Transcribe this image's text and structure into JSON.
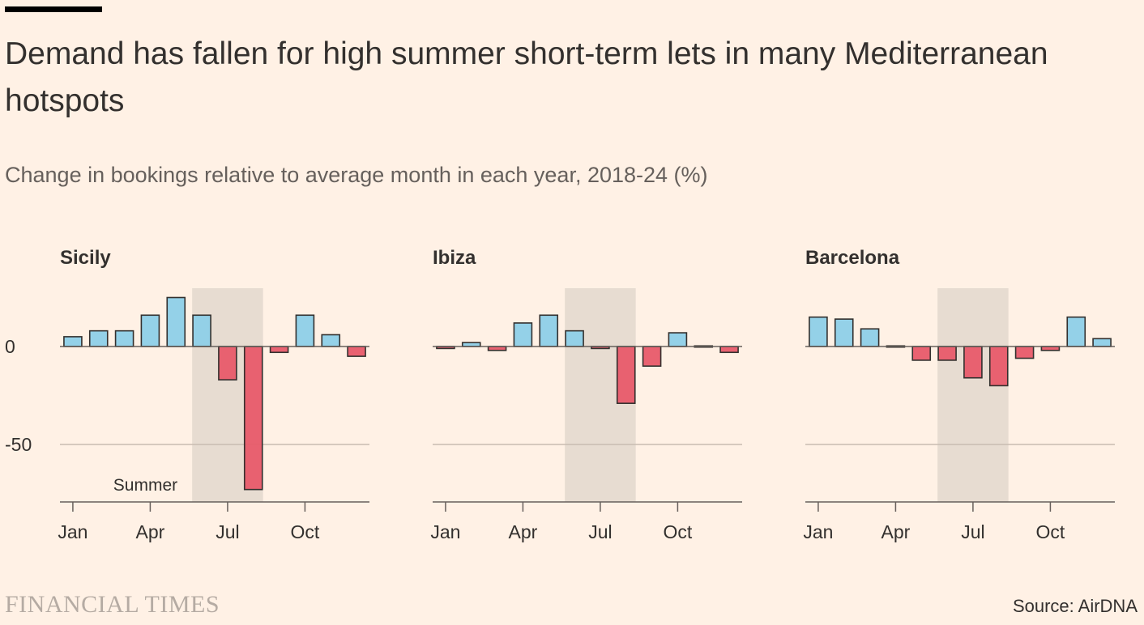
{
  "header": {
    "title": "Demand has fallen for high summer short-term lets in many Mediterranean hotspots",
    "subtitle": "Change in bookings relative to average month in each year, 2018-24 (%)"
  },
  "footer": {
    "logo": "FINANCIAL TIMES",
    "source": "Source: AirDNA"
  },
  "colors": {
    "positive": "#8ecfe8",
    "negative": "#e85a6a",
    "shade": "#e7dcd1",
    "axis": "#66605c",
    "grid": "#c9bcb1",
    "bar_stroke": "#33302e"
  },
  "chart_data": [
    {
      "type": "bar",
      "title": "Sicily",
      "categories": [
        "Jan",
        "Feb",
        "Mar",
        "Apr",
        "May",
        "Jun",
        "Jul",
        "Aug",
        "Sep",
        "Oct",
        "Nov",
        "Dec"
      ],
      "values": [
        5,
        8,
        8,
        16,
        25,
        16,
        -17,
        -73,
        -3,
        16,
        6,
        -5
      ],
      "x_ticks": [
        "Jan",
        "Apr",
        "Jul",
        "Oct"
      ],
      "y_ticks": [
        0,
        -50
      ],
      "ylim": [
        -80,
        30
      ],
      "shaded_range": [
        "Jun",
        "Aug"
      ],
      "annotation": "Summer",
      "show_y_labels": true
    },
    {
      "type": "bar",
      "title": "Ibiza",
      "categories": [
        "Jan",
        "Feb",
        "Mar",
        "Apr",
        "May",
        "Jun",
        "Jul",
        "Aug",
        "Sep",
        "Oct",
        "Nov",
        "Dec"
      ],
      "values": [
        -1,
        2,
        -2,
        12,
        16,
        8,
        -1,
        -29,
        -10,
        7,
        0,
        -3
      ],
      "x_ticks": [
        "Jan",
        "Apr",
        "Jul",
        "Oct"
      ],
      "y_ticks": [
        0,
        -50
      ],
      "ylim": [
        -80,
        30
      ],
      "shaded_range": [
        "Jun",
        "Aug"
      ],
      "annotation": "",
      "show_y_labels": false
    },
    {
      "type": "bar",
      "title": "Barcelona",
      "categories": [
        "Jan",
        "Feb",
        "Mar",
        "Apr",
        "May",
        "Jun",
        "Jul",
        "Aug",
        "Sep",
        "Oct",
        "Nov",
        "Dec"
      ],
      "values": [
        15,
        14,
        9,
        0,
        -7,
        -7,
        -16,
        -20,
        -6,
        -2,
        15,
        4
      ],
      "x_ticks": [
        "Jan",
        "Apr",
        "Jul",
        "Oct"
      ],
      "y_ticks": [
        0,
        -50
      ],
      "ylim": [
        -80,
        30
      ],
      "shaded_range": [
        "Jun",
        "Aug"
      ],
      "annotation": "",
      "show_y_labels": false
    }
  ]
}
